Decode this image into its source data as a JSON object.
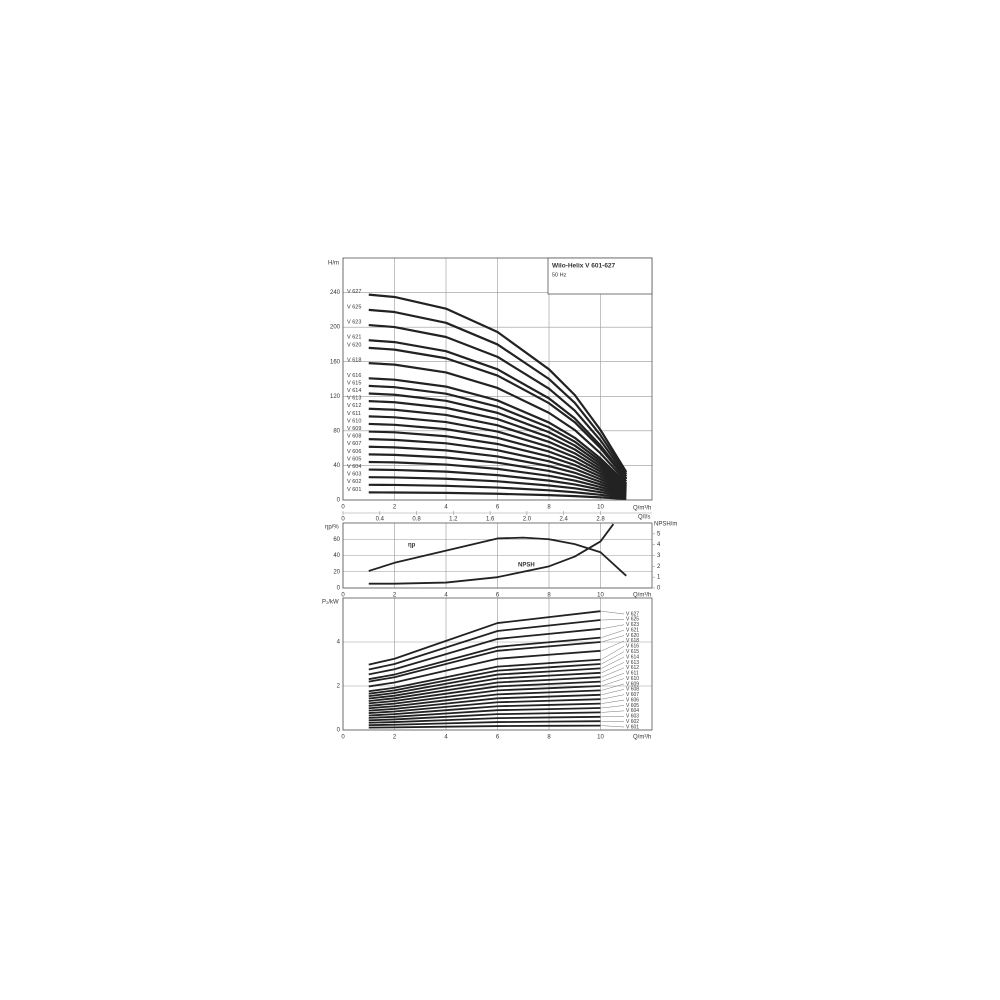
{
  "chart_data": [
    {
      "type": "line",
      "title": "Wilo-Helix V 601-627",
      "subtitle": "50 Hz",
      "y_label": "H/m",
      "x_label": "Q/m³/h",
      "x2_label": "Q/l/s",
      "xlim": [
        0,
        12
      ],
      "xticks": [
        0,
        2,
        4,
        6,
        8,
        10
      ],
      "x2lim": [
        0,
        3.36
      ],
      "x2ticks": [
        0,
        0.4,
        0.8,
        1.2,
        1.6,
        {
          "value": 2,
          "label": "2.0"
        },
        2.4,
        2.8
      ],
      "ylim": [
        0,
        280
      ],
      "yticks": [
        0,
        40,
        80,
        120,
        160,
        200,
        240
      ],
      "grid": true,
      "color": "#222",
      "x": [
        1,
        2,
        4,
        6,
        8,
        9,
        10,
        11
      ],
      "series": [
        {
          "name": "V 601",
          "values": [
            8.8,
            8.7,
            8.2,
            7.2,
            5.6,
            4.5,
            3.0,
            1.2
          ]
        },
        {
          "name": "V 602",
          "values": [
            17.6,
            17.4,
            16.4,
            14.4,
            11.2,
            9,
            6,
            2.4
          ]
        },
        {
          "name": "V 603",
          "values": [
            26.4,
            26.1,
            24.6,
            21.6,
            16.8,
            13.5,
            9,
            3.6
          ]
        },
        {
          "name": "V 604",
          "values": [
            35.2,
            34.8,
            32.8,
            28.8,
            22.4,
            18,
            12,
            4.8
          ]
        },
        {
          "name": "V 605",
          "values": [
            44,
            43.5,
            41,
            36,
            28,
            22.5,
            15,
            6
          ]
        },
        {
          "name": "V 606",
          "values": [
            52.8,
            52.2,
            49.2,
            43.2,
            33.6,
            27,
            18,
            7.2
          ]
        },
        {
          "name": "V 607",
          "values": [
            61.6,
            60.9,
            57.4,
            50.4,
            39.2,
            31.5,
            21,
            8.4
          ]
        },
        {
          "name": "V 608",
          "values": [
            70.4,
            69.6,
            65.6,
            57.6,
            44.8,
            36,
            24,
            9.6
          ]
        },
        {
          "name": "V 609",
          "values": [
            79.2,
            78.3,
            73.8,
            64.8,
            50.4,
            40.5,
            27,
            10.8
          ]
        },
        {
          "name": "V 610",
          "values": [
            88,
            87,
            82,
            72,
            56,
            45,
            30,
            12
          ]
        },
        {
          "name": "V 611",
          "values": [
            96.8,
            95.7,
            90.2,
            79.2,
            61.6,
            49.5,
            33,
            13.2
          ]
        },
        {
          "name": "V 612",
          "values": [
            105.6,
            104.4,
            98.4,
            86.4,
            67.2,
            54,
            36,
            14.4
          ]
        },
        {
          "name": "V 613",
          "values": [
            114.4,
            113.1,
            106.6,
            93.6,
            72.8,
            58.5,
            39,
            15.6
          ]
        },
        {
          "name": "V 614",
          "values": [
            123.2,
            121.8,
            114.8,
            100.8,
            78.4,
            63,
            42,
            16.8
          ]
        },
        {
          "name": "V 615",
          "values": [
            132,
            130.5,
            123,
            108,
            84,
            67.5,
            45,
            18
          ]
        },
        {
          "name": "V 616",
          "values": [
            140.8,
            139.2,
            131.2,
            115.2,
            89.6,
            72,
            48,
            19.2
          ]
        },
        {
          "name": "V 618",
          "values": [
            158.4,
            156.6,
            147.6,
            129.6,
            100.8,
            81,
            54,
            21.6
          ]
        },
        {
          "name": "V 620",
          "values": [
            176,
            174,
            164,
            144,
            112,
            90,
            60,
            24
          ]
        },
        {
          "name": "V 621",
          "values": [
            184.8,
            182.7,
            172.2,
            151.2,
            117.6,
            94.5,
            63,
            25.2
          ]
        },
        {
          "name": "V 623",
          "values": [
            202.4,
            200.1,
            188.6,
            165.6,
            128.8,
            103.5,
            69,
            27.6
          ]
        },
        {
          "name": "V 625",
          "values": [
            220,
            217.5,
            205,
            180,
            140,
            112.5,
            75,
            30
          ]
        },
        {
          "name": "V 627",
          "values": [
            237.6,
            234.9,
            221.4,
            194.4,
            151.2,
            121.5,
            81,
            32.4
          ]
        }
      ]
    },
    {
      "type": "line",
      "y_label": "ηp/%",
      "y2_label": "NPSH/m",
      "x_label": "Q/m³/h",
      "xlim": [
        0,
        12
      ],
      "xticks": [
        0,
        2,
        4,
        6,
        8,
        10
      ],
      "ylim": [
        0,
        80
      ],
      "yticks": [
        0,
        20,
        40,
        60
      ],
      "y2lim": [
        0,
        6
      ],
      "y2ticks": [
        0,
        1,
        2,
        3,
        4,
        5
      ],
      "grid": true,
      "color": "#222",
      "series": [
        {
          "name": "ηp",
          "x": [
            1,
            2,
            4,
            6,
            7,
            8,
            9,
            10,
            11
          ],
          "values": [
            21,
            31,
            46,
            61,
            62,
            60,
            54,
            44,
            15
          ]
        },
        {
          "name": "NPSH",
          "axis": "y2",
          "x": [
            1,
            2,
            4,
            6,
            8,
            9,
            10,
            10.5
          ],
          "values": [
            0.4,
            0.4,
            0.5,
            1.0,
            2.0,
            2.9,
            4.3,
            5.9
          ]
        }
      ]
    },
    {
      "type": "line",
      "y_label": "P₂/kW",
      "x_label": "Q/m³/h",
      "xlim": [
        0,
        12
      ],
      "xticks": [
        0,
        2,
        4,
        6,
        8,
        10
      ],
      "ylim": [
        0,
        6
      ],
      "yticks": [
        0,
        2,
        4
      ],
      "grid": true,
      "color": "#222",
      "x": [
        1,
        2,
        4,
        6,
        8,
        10
      ],
      "series": [
        {
          "name": "V 601",
          "values": [
            0.11,
            0.12,
            0.15,
            0.18,
            0.19,
            0.2
          ]
        },
        {
          "name": "V 602",
          "values": [
            0.22,
            0.24,
            0.3,
            0.36,
            0.38,
            0.4
          ]
        },
        {
          "name": "V 603",
          "values": [
            0.33,
            0.36,
            0.45,
            0.54,
            0.57,
            0.6
          ]
        },
        {
          "name": "V 604",
          "values": [
            0.44,
            0.48,
            0.6,
            0.72,
            0.76,
            0.8
          ]
        },
        {
          "name": "V 605",
          "values": [
            0.55,
            0.6,
            0.75,
            0.9,
            0.95,
            1
          ]
        },
        {
          "name": "V 606",
          "values": [
            0.66,
            0.72,
            0.9,
            1.08,
            1.14,
            1.2
          ]
        },
        {
          "name": "V 607",
          "values": [
            0.77,
            0.84,
            1.05,
            1.26,
            1.33,
            1.4
          ]
        },
        {
          "name": "V 608",
          "values": [
            0.88,
            0.96,
            1.2,
            1.44,
            1.52,
            1.6
          ]
        },
        {
          "name": "V 609",
          "values": [
            0.99,
            1.08,
            1.35,
            1.62,
            1.71,
            1.8
          ]
        },
        {
          "name": "V 610",
          "values": [
            1.1,
            1.2,
            1.5,
            1.8,
            1.9,
            2
          ]
        },
        {
          "name": "V 611",
          "values": [
            1.21,
            1.32,
            1.65,
            1.98,
            2.09,
            2.2
          ]
        },
        {
          "name": "V 612",
          "values": [
            1.32,
            1.44,
            1.8,
            2.16,
            2.28,
            2.4
          ]
        },
        {
          "name": "V 613",
          "values": [
            1.43,
            1.56,
            1.95,
            2.34,
            2.47,
            2.6
          ]
        },
        {
          "name": "V 614",
          "values": [
            1.54,
            1.68,
            2.1,
            2.52,
            2.66,
            2.8
          ]
        },
        {
          "name": "V 615",
          "values": [
            1.65,
            1.8,
            2.25,
            2.7,
            2.85,
            3
          ]
        },
        {
          "name": "V 616",
          "values": [
            1.76,
            1.92,
            2.4,
            2.88,
            3.04,
            3.2
          ]
        },
        {
          "name": "V 618",
          "values": [
            1.98,
            2.16,
            2.7,
            3.24,
            3.42,
            3.6
          ]
        },
        {
          "name": "V 620",
          "values": [
            2.2,
            2.4,
            3,
            3.6,
            3.8,
            4
          ]
        },
        {
          "name": "V 621",
          "values": [
            2.31,
            2.52,
            3.15,
            3.78,
            3.99,
            4.2
          ]
        },
        {
          "name": "V 623",
          "values": [
            2.53,
            2.76,
            3.45,
            4.14,
            4.37,
            4.6
          ]
        },
        {
          "name": "V 625",
          "values": [
            2.75,
            3,
            3.75,
            4.5,
            4.75,
            5
          ]
        },
        {
          "name": "V 627",
          "values": [
            2.97,
            3.24,
            4.05,
            4.86,
            5.13,
            5.4
          ]
        }
      ]
    }
  ]
}
